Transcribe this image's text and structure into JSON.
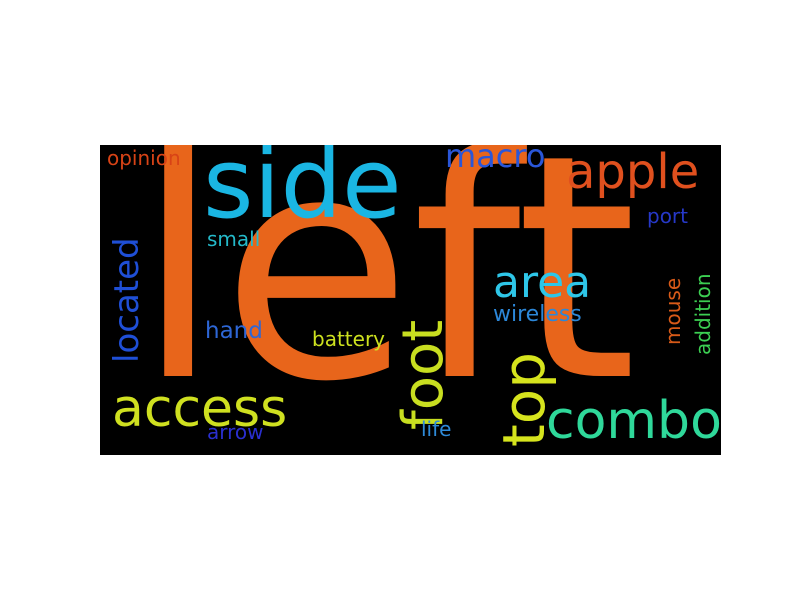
{
  "word_cloud": {
    "words": [
      {
        "key": "left",
        "text": "left",
        "color": "#e8651b"
      },
      {
        "key": "side",
        "text": "side",
        "color": "#1ab6e3"
      },
      {
        "key": "apple",
        "text": "apple",
        "color": "#e0501e"
      },
      {
        "key": "access",
        "text": "access",
        "color": "#cfe020"
      },
      {
        "key": "combo",
        "text": "combo",
        "color": "#2fd89a"
      },
      {
        "key": "foot",
        "text": "foot",
        "color": "#c8de20"
      },
      {
        "key": "top",
        "text": "top",
        "color": "#d6e41d"
      },
      {
        "key": "area",
        "text": "area",
        "color": "#2ec6e8"
      },
      {
        "key": "located",
        "text": "located",
        "color": "#1f4fd6"
      },
      {
        "key": "macro",
        "text": "macro",
        "color": "#2a56d8"
      },
      {
        "key": "opinion",
        "text": "opinion",
        "color": "#d84316"
      },
      {
        "key": "small",
        "text": "small",
        "color": "#24b9c9"
      },
      {
        "key": "hand",
        "text": "hand",
        "color": "#2e67d6"
      },
      {
        "key": "battery",
        "text": "battery",
        "color": "#cde11f"
      },
      {
        "key": "wireless",
        "text": "wireless",
        "color": "#2c87d8"
      },
      {
        "key": "arrow",
        "text": "arrow",
        "color": "#2a2fd0"
      },
      {
        "key": "life",
        "text": "life",
        "color": "#2e8ad8"
      },
      {
        "key": "port",
        "text": "port",
        "color": "#2638c8"
      },
      {
        "key": "mouse",
        "text": "mouse",
        "color": "#d85a18"
      },
      {
        "key": "addition",
        "text": "addition",
        "color": "#3ccf52"
      }
    ]
  }
}
